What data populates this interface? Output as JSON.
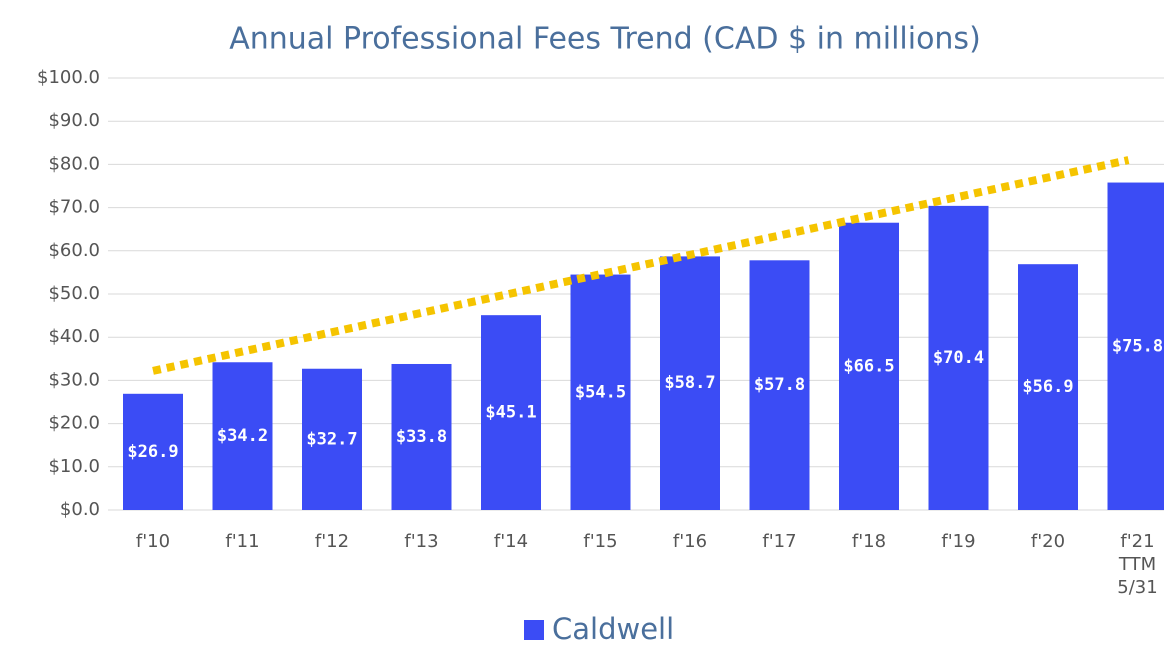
{
  "chart_data": {
    "type": "bar",
    "title": "Annual Professional Fees Trend (CAD $ in millions)",
    "categories": [
      "f'10",
      "f'11",
      "f'12",
      "f'13",
      "f'14",
      "f'15",
      "f'16",
      "f'17",
      "f'18",
      "f'19",
      "f'20",
      "f'21 TTM 5/31"
    ],
    "series": [
      {
        "name": "Caldwell",
        "color": "#3b4cf5",
        "values": [
          26.9,
          34.2,
          32.7,
          33.8,
          45.1,
          54.5,
          58.7,
          57.8,
          66.5,
          70.4,
          56.9,
          75.8
        ],
        "value_labels": [
          "$26.9",
          "$34.2",
          "$32.7",
          "$33.8",
          "$45.1",
          "$54.5",
          "$58.7",
          "$57.8",
          "$66.5",
          "$70.4",
          "$56.9",
          "$75.8"
        ]
      }
    ],
    "trendline": {
      "color": "#f5c400",
      "values": [
        32.2,
        81.0
      ]
    },
    "ylim": [
      0,
      100
    ],
    "yticks": [
      {
        "value": 0,
        "label": "$0.0"
      },
      {
        "value": 10,
        "label": "$10.0"
      },
      {
        "value": 20,
        "label": "$20.0"
      },
      {
        "value": 30,
        "label": "$30.0"
      },
      {
        "value": 40,
        "label": "$40.0"
      },
      {
        "value": 50,
        "label": "$50.0"
      },
      {
        "value": 60,
        "label": "$60.0"
      },
      {
        "value": 70,
        "label": "$70.0"
      },
      {
        "value": 80,
        "label": "$80.0"
      },
      {
        "value": 90,
        "label": "$90.0"
      },
      {
        "value": 100,
        "label": "$100.0"
      }
    ],
    "grid": true,
    "legend": "bottom"
  }
}
